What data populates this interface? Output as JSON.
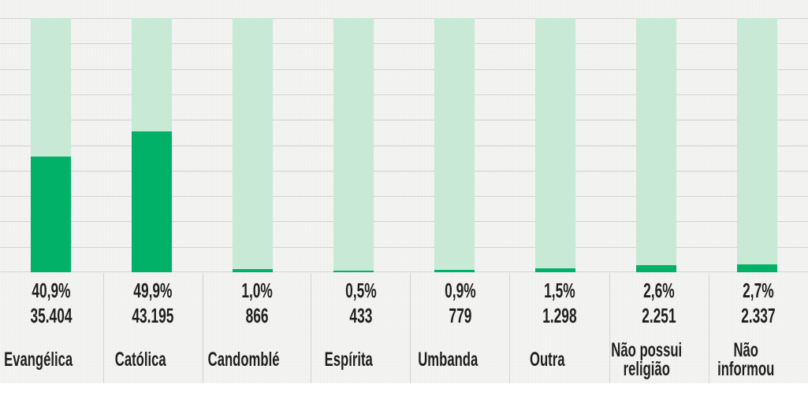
{
  "chart_data": {
    "type": "bar",
    "title": "",
    "xlabel": "",
    "ylabel": "",
    "ylim": [
      0,
      90
    ],
    "gridline_intervals": 10,
    "grid": true,
    "legend_position": "none",
    "unit_percent_decimal_separator": ",",
    "categories": [
      "Evangélica",
      "Católica",
      "Candomblé",
      "Espírita",
      "Umbanda",
      "Outra",
      "Não possui religião",
      "Não informou"
    ],
    "series": [
      {
        "name": "percent",
        "values": [
          40.9,
          49.9,
          1.0,
          0.5,
          0.9,
          1.5,
          2.6,
          2.7
        ]
      },
      {
        "name": "count",
        "values": [
          35404,
          43195,
          866,
          433,
          779,
          1298,
          2251,
          2337
        ]
      }
    ],
    "points": [
      {
        "id": "evangelica",
        "category": "Evangélica",
        "percent": 40.9,
        "percent_label": "40,9%",
        "count_label": "35.404"
      },
      {
        "id": "catolica",
        "category": "Católica",
        "percent": 49.9,
        "percent_label": "49,9%",
        "count_label": "43.195"
      },
      {
        "id": "candomble",
        "category": "Candomblé",
        "percent": 1.0,
        "percent_label": "1,0%",
        "count_label": "866"
      },
      {
        "id": "espirita",
        "category": "Espírita",
        "percent": 0.5,
        "percent_label": "0,5%",
        "count_label": "433"
      },
      {
        "id": "umbanda",
        "category": "Umbanda",
        "percent": 0.9,
        "percent_label": "0,9%",
        "count_label": "779"
      },
      {
        "id": "outra",
        "category": "Outra",
        "percent": 1.5,
        "percent_label": "1,5%",
        "count_label": "1.298"
      },
      {
        "id": "nao-possui-religiao",
        "category": "Não possui religião",
        "percent": 2.6,
        "percent_label": "2,6%",
        "count_label": "2.251"
      },
      {
        "id": "nao-informou",
        "category": "Não informou",
        "percent": 2.7,
        "percent_label": "2,7%",
        "count_label": "2.337"
      }
    ]
  },
  "colors": {
    "bar_fill": "#00b167",
    "bar_track": "#c7e9d5",
    "background": "#f4f4f2",
    "gridline": "#d2d2d0",
    "divider": "#d4d4d2",
    "text": "#1f1f1f"
  }
}
